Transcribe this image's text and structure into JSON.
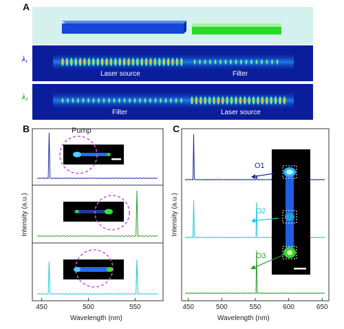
{
  "panel_a": {
    "label": "A",
    "lambda1": "λ₁",
    "lambda2": "λ₂",
    "row1_left": "Laser source",
    "row1_right": "Filter",
    "row2_left": "Filter",
    "row2_right": "Laser source",
    "colors": {
      "bg": "#d4f1ee",
      "blue_bar": "#1446d8",
      "green_bar": "#22dd22",
      "field_bg": "#0a1d9a"
    }
  },
  "panel_b": {
    "label": "B",
    "pump_label": "Pump",
    "ylabel": "Intensity  (a.u.)",
    "xlabel": "Wavelength  (nm)",
    "xticks": [
      "450",
      "500",
      "550"
    ]
  },
  "panel_c": {
    "label": "C",
    "ylabel": "Intensity  (a.u.)",
    "xlabel": "Wavelength  (nm)",
    "xticks": [
      "450",
      "500",
      "550",
      "600",
      "650"
    ],
    "outputs": [
      "O1",
      "O2",
      "O3"
    ]
  },
  "chart_data": [
    {
      "type": "line",
      "panel": "B",
      "xlim": [
        440,
        580
      ],
      "stack": [
        {
          "color": "#1a2a9c",
          "peaks": [
            {
              "x": 458,
              "y": 1.0
            }
          ]
        },
        {
          "color": "#2e9b2e",
          "peaks": [
            {
              "x": 552,
              "y": 1.0
            }
          ]
        },
        {
          "color": "#22c8d8",
          "peaks": [
            {
              "x": 458,
              "y": 0.75
            },
            {
              "x": 552,
              "y": 0.8
            }
          ]
        }
      ]
    },
    {
      "type": "line",
      "panel": "C",
      "xlim": [
        440,
        660
      ],
      "stack": [
        {
          "label": "O1",
          "color": "#1a2a9c",
          "peaks": [
            {
              "x": 458,
              "y": 1.0
            },
            {
              "x": 552,
              "y": 0.1
            }
          ]
        },
        {
          "label": "O2",
          "color": "#22c8d8",
          "peaks": [
            {
              "x": 458,
              "y": 0.85
            },
            {
              "x": 552,
              "y": 0.8
            }
          ]
        },
        {
          "label": "O3",
          "color": "#2e9b2e",
          "peaks": [
            {
              "x": 552,
              "y": 1.0
            }
          ]
        }
      ]
    }
  ]
}
